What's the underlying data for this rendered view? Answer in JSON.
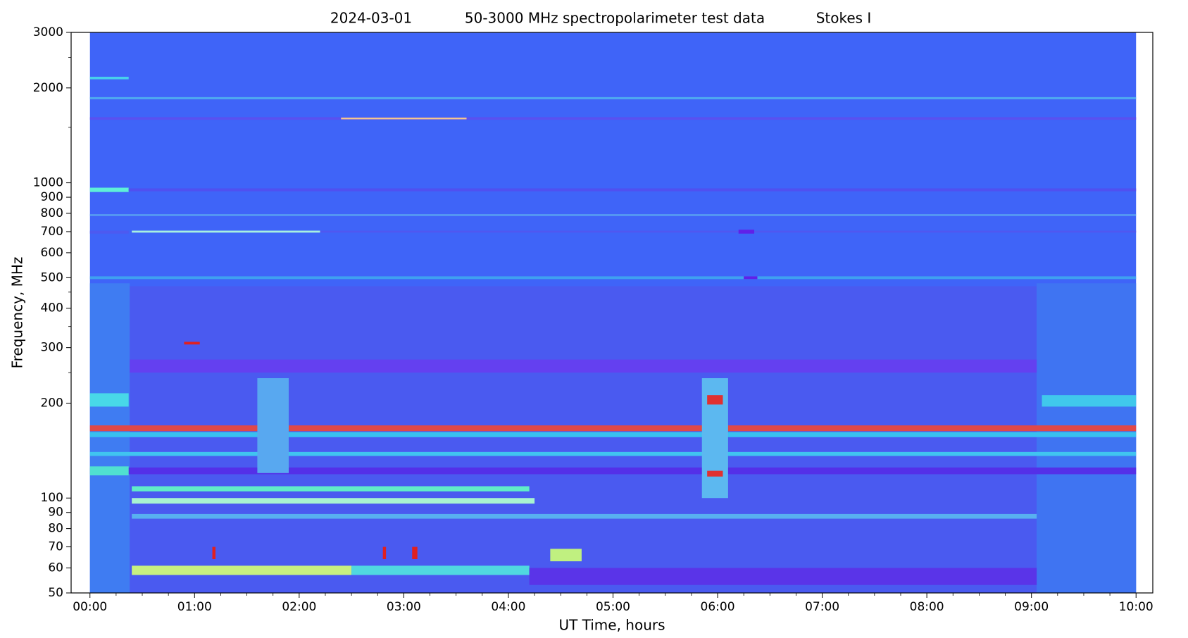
{
  "chart_data": {
    "type": "spectrogram",
    "title_parts": [
      "2024-03-01",
      "50-3000 MHz spectropolarimeter test data",
      "Stokes I"
    ],
    "x_label": "UT Time, hours",
    "y_label": "Frequency, MHz",
    "xlim": [
      -0.18,
      10.16
    ],
    "xticks": [
      {
        "value": 0,
        "label": "00:00"
      },
      {
        "value": 1,
        "label": "01:00"
      },
      {
        "value": 2,
        "label": "02:00"
      },
      {
        "value": 3,
        "label": "03:00"
      },
      {
        "value": 4,
        "label": "04:00"
      },
      {
        "value": 5,
        "label": "05:00"
      },
      {
        "value": 6,
        "label": "06:00"
      },
      {
        "value": 7,
        "label": "07:00"
      },
      {
        "value": 8,
        "label": "08:00"
      },
      {
        "value": 9,
        "label": "09:00"
      },
      {
        "value": 10,
        "label": "10:00"
      }
    ],
    "xminor_ticks": [
      0.25,
      0.5,
      0.75,
      1.25,
      1.5,
      1.75,
      2.25,
      2.5,
      2.75,
      3.25,
      3.5,
      3.75,
      4.25,
      4.5,
      4.75,
      5.25,
      5.5,
      5.75,
      6.25,
      6.5,
      6.75,
      7.25,
      7.5,
      7.75,
      8.25,
      8.5,
      8.75,
      9.25,
      9.5,
      9.75
    ],
    "ylim": [
      50,
      3000
    ],
    "y_log": true,
    "yticks": [
      50,
      60,
      70,
      80,
      90,
      100,
      200,
      300,
      400,
      500,
      600,
      700,
      800,
      900,
      1000,
      2000,
      3000
    ],
    "yminor_ticks": [
      250,
      350,
      450,
      1500,
      2500
    ],
    "features": [
      {
        "t": [
          0,
          10
        ],
        "f": [
          50,
          3000
        ],
        "color": "#3f64f8"
      },
      {
        "t": [
          0,
          0.38
        ],
        "f": [
          50,
          480
        ],
        "color": "#3f7cf2"
      },
      {
        "t": [
          0.38,
          9.05
        ],
        "f": [
          50,
          470
        ],
        "color": "#4a5af0"
      },
      {
        "t": [
          9.05,
          10
        ],
        "f": [
          50,
          480
        ],
        "color": "#3f74f2"
      },
      {
        "t": [
          0,
          0.37
        ],
        "f": [
          195,
          215
        ],
        "color": "#48d8e8"
      },
      {
        "t": [
          9.1,
          10
        ],
        "f": [
          195,
          212
        ],
        "color": "#40c8ec"
      },
      {
        "t": [
          0.38,
          9.05
        ],
        "f": [
          250,
          275
        ],
        "color": "#6440f0"
      },
      {
        "t": [
          0,
          10
        ],
        "f": [
          163,
          170
        ],
        "color": "#e04848"
      },
      {
        "t": [
          0,
          10
        ],
        "f": [
          156,
          162
        ],
        "color": "#38c0f0"
      },
      {
        "t": [
          0,
          10
        ],
        "f": [
          136,
          140
        ],
        "color": "#40c4f0"
      },
      {
        "t": [
          0,
          10
        ],
        "f": [
          119,
          125
        ],
        "color": "#5430e8"
      },
      {
        "t": [
          0,
          0.37
        ],
        "f": [
          118,
          126
        ],
        "color": "#50e0d0"
      },
      {
        "t": [
          0.4,
          4.2
        ],
        "f": [
          105,
          109
        ],
        "color": "#60ecc8"
      },
      {
        "t": [
          0.4,
          4.25
        ],
        "f": [
          96,
          100
        ],
        "color": "#a8f4d0"
      },
      {
        "t": [
          0.4,
          9.05
        ],
        "f": [
          86,
          89
        ],
        "color": "#58b0f0"
      },
      {
        "t": [
          0.4,
          2.5
        ],
        "f": [
          57,
          61
        ],
        "color": "#c8f080"
      },
      {
        "t": [
          2.5,
          4.2
        ],
        "f": [
          57,
          61
        ],
        "color": "#50d8e0"
      },
      {
        "t": [
          4.2,
          9.05
        ],
        "f": [
          53,
          60
        ],
        "color": "#5a34e8"
      },
      {
        "t": [
          5.85,
          6.1
        ],
        "f": [
          100,
          240
        ],
        "color": "#5cb8f0"
      },
      {
        "t": [
          5.9,
          6.05
        ],
        "f": [
          198,
          212
        ],
        "color": "#e03030"
      },
      {
        "t": [
          5.9,
          6.05
        ],
        "f": [
          117,
          122
        ],
        "color": "#e03030"
      },
      {
        "t": [
          1.6,
          1.9
        ],
        "f": [
          120,
          240
        ],
        "color": "#58a8f0"
      },
      {
        "t": [
          0.9,
          1.05
        ],
        "f": [
          307,
          313
        ],
        "color": "#e02020"
      },
      {
        "t": [
          1.17,
          1.2
        ],
        "f": [
          64,
          70
        ],
        "color": "#e02020"
      },
      {
        "t": [
          2.8,
          2.83
        ],
        "f": [
          64,
          70
        ],
        "color": "#e02020"
      },
      {
        "t": [
          3.08,
          3.13
        ],
        "f": [
          64,
          70
        ],
        "color": "#e02020"
      },
      {
        "t": [
          4.4,
          4.7
        ],
        "f": [
          63,
          69
        ],
        "color": "#c0f080"
      },
      {
        "t": [
          0,
          10
        ],
        "f": [
          495,
          505
        ],
        "color": "#3fa0f0"
      },
      {
        "t": [
          6.25,
          6.38
        ],
        "f": [
          495,
          505
        ],
        "color": "#6020e8"
      },
      {
        "t": [
          0,
          0.37
        ],
        "f": [
          690,
          705
        ],
        "color": "#4d5af0"
      },
      {
        "t": [
          0.4,
          2.2
        ],
        "f": [
          695,
          705
        ],
        "color": "#a8f0e0"
      },
      {
        "t": [
          2.2,
          10
        ],
        "f": [
          695,
          705
        ],
        "color": "#4f58f0"
      },
      {
        "t": [
          6.2,
          6.35
        ],
        "f": [
          690,
          710
        ],
        "color": "#6020e8"
      },
      {
        "t": [
          0,
          10
        ],
        "f": [
          785,
          795
        ],
        "color": "#58a0f0"
      },
      {
        "t": [
          0,
          0.37
        ],
        "f": [
          935,
          965
        ],
        "color": "#5ef0d8"
      },
      {
        "t": [
          0.37,
          10
        ],
        "f": [
          940,
          960
        ],
        "color": "#5050f0"
      },
      {
        "t": [
          0,
          10
        ],
        "f": [
          1585,
          1615
        ],
        "color": "#5a50f0"
      },
      {
        "t": [
          2.4,
          3.6
        ],
        "f": [
          1590,
          1610
        ],
        "color": "#f0c890"
      },
      {
        "t": [
          0,
          10
        ],
        "f": [
          1840,
          1870
        ],
        "color": "#4ea8f0"
      },
      {
        "t": [
          0,
          0.37
        ],
        "f": [
          2130,
          2170
        ],
        "color": "#48d0ec"
      }
    ]
  }
}
